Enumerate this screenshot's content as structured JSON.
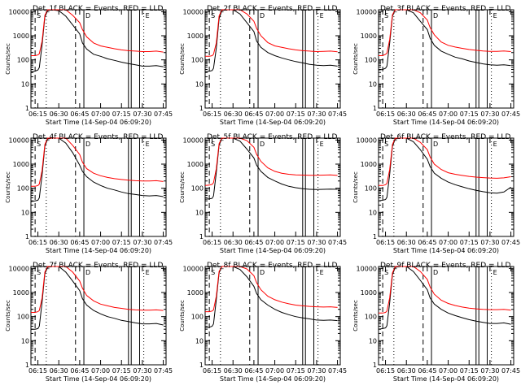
{
  "figure": {
    "start_time_label": "Start Time (14-Sep-04 06:09:20)",
    "ylabel": "Counts/sec",
    "series_colors": {
      "events": "#000000",
      "lld": "#ff0000"
    },
    "panel_marker_labels": [
      "S",
      "D",
      "E"
    ]
  },
  "chart_data": [
    {
      "type": "line",
      "title": "Det_1f BLACK = Events, RED = LLD",
      "xlabel": "Start Time (14-Sep-04 06:09:20)",
      "ylabel": "Counts/sec",
      "xlim": [
        "06:10",
        "07:47"
      ],
      "ylim": [
        1,
        12000
      ],
      "yscale": "log",
      "xticks": [
        "06:15",
        "06:30",
        "06:45",
        "07:00",
        "07:15",
        "07:30",
        "07:45"
      ],
      "yticks": [
        1,
        10,
        100,
        1000,
        10000
      ],
      "x": [
        "06:10",
        "06:13",
        "06:15",
        "06:16",
        "06:18",
        "06:20",
        "06:22",
        "06:25",
        "06:30",
        "06:35",
        "06:40",
        "06:45",
        "06:47",
        "06:50",
        "06:55",
        "07:00",
        "07:05",
        "07:10",
        "07:15",
        "07:20",
        "07:25",
        "07:30",
        "07:35",
        "07:40",
        "07:45"
      ],
      "series": [
        {
          "name": "Events",
          "color": "#000000",
          "values": [
            32,
            34,
            38,
            48,
            420,
            6000,
            11000,
            12000,
            11000,
            6500,
            2800,
            1200,
            500,
            280,
            170,
            140,
            110,
            95,
            80,
            70,
            62,
            55,
            55,
            58,
            52
          ]
        },
        {
          "name": "LLD",
          "color": "#ff0000",
          "values": [
            150,
            150,
            160,
            180,
            600,
            7000,
            12000,
            12000,
            12000,
            12000,
            7000,
            3500,
            1800,
            900,
            500,
            380,
            330,
            290,
            260,
            240,
            230,
            220,
            220,
            230,
            210
          ]
        }
      ]
    },
    {
      "type": "line",
      "title": "Det_2f BLACK = Events, RED = LLD",
      "xlabel": "Start Time (14-Sep-04 06:09:20)",
      "ylabel": "Counts/sec",
      "xlim": [
        "06:10",
        "07:47"
      ],
      "ylim": [
        1,
        12000
      ],
      "yscale": "log",
      "xticks": [
        "06:15",
        "06:30",
        "06:45",
        "07:00",
        "07:15",
        "07:30",
        "07:45"
      ],
      "yticks": [
        1,
        10,
        100,
        1000,
        10000
      ],
      "x": [
        "06:10",
        "06:13",
        "06:15",
        "06:16",
        "06:18",
        "06:20",
        "06:22",
        "06:25",
        "06:30",
        "06:35",
        "06:40",
        "06:45",
        "06:47",
        "06:50",
        "06:55",
        "07:00",
        "07:05",
        "07:10",
        "07:15",
        "07:20",
        "07:25",
        "07:30",
        "07:35",
        "07:40",
        "07:45"
      ],
      "series": [
        {
          "name": "Events",
          "color": "#000000",
          "values": [
            32,
            34,
            36,
            45,
            300,
            5000,
            11000,
            12000,
            12000,
            8000,
            3500,
            1500,
            600,
            330,
            200,
            150,
            120,
            100,
            85,
            75,
            65,
            60,
            58,
            60,
            55
          ]
        },
        {
          "name": "LLD",
          "color": "#ff0000",
          "values": [
            140,
            140,
            150,
            170,
            500,
            6500,
            12000,
            12000,
            12000,
            12000,
            8000,
            4000,
            2000,
            1000,
            520,
            380,
            330,
            290,
            260,
            240,
            230,
            220,
            225,
            230,
            215
          ]
        }
      ]
    },
    {
      "type": "line",
      "title": "Det_3f BLACK = Events, RED = LLD",
      "xlabel": "Start Time (14-Sep-04 06:09:20)",
      "ylabel": "Counts/sec",
      "xlim": [
        "06:10",
        "07:47"
      ],
      "ylim": [
        1,
        12000
      ],
      "yscale": "log",
      "xticks": [
        "06:15",
        "06:30",
        "06:45",
        "07:00",
        "07:15",
        "07:30",
        "07:45"
      ],
      "yticks": [
        1,
        10,
        100,
        1000,
        10000
      ],
      "x": [
        "06:10",
        "06:13",
        "06:15",
        "06:16",
        "06:18",
        "06:20",
        "06:22",
        "06:25",
        "06:30",
        "06:35",
        "06:40",
        "06:45",
        "06:47",
        "06:50",
        "06:55",
        "07:00",
        "07:05",
        "07:10",
        "07:15",
        "07:20",
        "07:25",
        "07:30",
        "07:35",
        "07:40",
        "07:45"
      ],
      "series": [
        {
          "name": "Events",
          "color": "#000000",
          "values": [
            38,
            40,
            45,
            55,
            500,
            6500,
            12000,
            12000,
            12000,
            9000,
            4000,
            1800,
            800,
            400,
            230,
            170,
            130,
            110,
            90,
            78,
            68,
            62,
            60,
            62,
            58
          ]
        },
        {
          "name": "LLD",
          "color": "#ff0000",
          "values": [
            150,
            150,
            170,
            190,
            700,
            7500,
            12000,
            12000,
            12000,
            12000,
            9000,
            4500,
            2200,
            1100,
            550,
            400,
            340,
            300,
            270,
            250,
            235,
            225,
            225,
            235,
            220
          ]
        }
      ]
    },
    {
      "type": "line",
      "title": "Det_4f BLACK = Events, RED = LLD",
      "xlabel": "Start Time (14-Sep-04 06:09:20)",
      "ylabel": "Counts/sec",
      "xlim": [
        "06:10",
        "07:47"
      ],
      "ylim": [
        1,
        12000
      ],
      "yscale": "log",
      "xticks": [
        "06:15",
        "06:30",
        "06:45",
        "07:00",
        "07:15",
        "07:30",
        "07:45"
      ],
      "yticks": [
        1,
        10,
        100,
        1000,
        10000
      ],
      "x": [
        "06:10",
        "06:13",
        "06:15",
        "06:16",
        "06:18",
        "06:20",
        "06:22",
        "06:25",
        "06:30",
        "06:35",
        "06:40",
        "06:45",
        "06:47",
        "06:50",
        "06:55",
        "07:00",
        "07:05",
        "07:10",
        "07:15",
        "07:20",
        "07:25",
        "07:30",
        "07:35",
        "07:40",
        "07:45"
      ],
      "series": [
        {
          "name": "Events",
          "color": "#000000",
          "values": [
            28,
            30,
            32,
            40,
            350,
            5500,
            11000,
            12000,
            12000,
            7500,
            3000,
            900,
            500,
            300,
            180,
            130,
            100,
            85,
            70,
            60,
            55,
            50,
            48,
            50,
            45
          ]
        },
        {
          "name": "LLD",
          "color": "#ff0000",
          "values": [
            120,
            120,
            130,
            150,
            550,
            6500,
            12000,
            12000,
            12000,
            12000,
            6000,
            2500,
            1200,
            650,
            420,
            330,
            280,
            250,
            230,
            215,
            205,
            200,
            200,
            205,
            190
          ]
        }
      ]
    },
    {
      "type": "line",
      "title": "Det_5f BLACK = Events, RED = LLD",
      "xlabel": "Start Time (14-Sep-04 06:09:20)",
      "ylabel": "Counts/sec",
      "xlim": [
        "06:10",
        "07:47"
      ],
      "ylim": [
        1,
        12000
      ],
      "yscale": "log",
      "xticks": [
        "06:15",
        "06:30",
        "06:45",
        "07:00",
        "07:15",
        "07:30",
        "07:45"
      ],
      "yticks": [
        1,
        10,
        100,
        1000,
        10000
      ],
      "x": [
        "06:10",
        "06:13",
        "06:15",
        "06:16",
        "06:18",
        "06:20",
        "06:22",
        "06:25",
        "06:30",
        "06:35",
        "06:40",
        "06:45",
        "06:47",
        "06:50",
        "06:55",
        "07:00",
        "07:05",
        "07:10",
        "07:15",
        "07:20",
        "07:25",
        "07:30",
        "07:35",
        "07:40",
        "07:45"
      ],
      "series": [
        {
          "name": "Events",
          "color": "#000000",
          "values": [
            35,
            36,
            38,
            48,
            450,
            6000,
            11500,
            12000,
            12000,
            9000,
            4200,
            1800,
            900,
            500,
            280,
            200,
            150,
            120,
            105,
            95,
            90,
            88,
            90,
            92,
            90
          ]
        },
        {
          "name": "LLD",
          "color": "#ff0000",
          "values": [
            130,
            135,
            145,
            170,
            650,
            7000,
            12000,
            12000,
            12000,
            12000,
            9500,
            5000,
            2500,
            1300,
            700,
            500,
            420,
            380,
            360,
            350,
            345,
            345,
            350,
            360,
            340
          ]
        }
      ]
    },
    {
      "type": "line",
      "title": "Det_6f BLACK = Events, RED = LLD",
      "xlabel": "Start Time (14-Sep-04 06:09:20)",
      "ylabel": "Counts/sec",
      "xlim": [
        "06:10",
        "07:47"
      ],
      "ylim": [
        1,
        12000
      ],
      "yscale": "log",
      "xticks": [
        "06:15",
        "06:30",
        "06:45",
        "07:00",
        "07:15",
        "07:30",
        "07:45"
      ],
      "yticks": [
        1,
        10,
        100,
        1000,
        10000
      ],
      "x": [
        "06:10",
        "06:13",
        "06:15",
        "06:16",
        "06:18",
        "06:20",
        "06:22",
        "06:25",
        "06:30",
        "06:35",
        "06:40",
        "06:45",
        "06:47",
        "06:50",
        "06:55",
        "07:00",
        "07:05",
        "07:10",
        "07:15",
        "07:20",
        "07:25",
        "07:30",
        "07:35",
        "07:40",
        "07:45"
      ],
      "series": [
        {
          "name": "Events",
          "color": "#000000",
          "values": [
            30,
            32,
            34,
            42,
            380,
            5500,
            11000,
            12000,
            12000,
            8500,
            4000,
            1600,
            800,
            420,
            260,
            180,
            140,
            115,
            95,
            82,
            72,
            65,
            62,
            70,
            110
          ]
        },
        {
          "name": "LLD",
          "color": "#ff0000",
          "values": [
            130,
            130,
            140,
            160,
            600,
            6500,
            12000,
            12000,
            12000,
            12000,
            8000,
            4000,
            2000,
            1000,
            600,
            440,
            380,
            340,
            310,
            290,
            275,
            265,
            260,
            270,
            300
          ]
        }
      ]
    },
    {
      "type": "line",
      "title": "Det_7f BLACK = Events, RED = LLD",
      "xlabel": "Start Time (14-Sep-04 06:09:20)",
      "ylabel": "Counts/sec",
      "xlim": [
        "06:10",
        "07:47"
      ],
      "ylim": [
        1,
        12000
      ],
      "yscale": "log",
      "xticks": [
        "06:15",
        "06:30",
        "06:45",
        "07:00",
        "07:15",
        "07:30",
        "07:45"
      ],
      "yticks": [
        1,
        10,
        100,
        1000,
        10000
      ],
      "x": [
        "06:10",
        "06:13",
        "06:15",
        "06:16",
        "06:18",
        "06:20",
        "06:22",
        "06:25",
        "06:30",
        "06:35",
        "06:40",
        "06:45",
        "06:47",
        "06:50",
        "06:55",
        "07:00",
        "07:05",
        "07:10",
        "07:15",
        "07:20",
        "07:25",
        "07:30",
        "07:35",
        "07:40",
        "07:45"
      ],
      "series": [
        {
          "name": "Events",
          "color": "#000000",
          "values": [
            30,
            30,
            32,
            40,
            400,
            6000,
            11000,
            12000,
            12000,
            7000,
            3000,
            1200,
            550,
            300,
            180,
            130,
            100,
            85,
            70,
            62,
            55,
            50,
            50,
            52,
            45
          ]
        },
        {
          "name": "LLD",
          "color": "#ff0000",
          "values": [
            150,
            150,
            160,
            180,
            600,
            7000,
            12000,
            12000,
            12000,
            12000,
            7000,
            3000,
            1500,
            750,
            450,
            330,
            280,
            240,
            220,
            200,
            190,
            185,
            185,
            190,
            180
          ]
        }
      ]
    },
    {
      "type": "line",
      "title": "Det_8f BLACK = Events, RED = LLD",
      "xlabel": "Start Time (14-Sep-04 06:09:20)",
      "ylabel": "Counts/sec",
      "xlim": [
        "06:10",
        "07:47"
      ],
      "ylim": [
        1,
        12000
      ],
      "yscale": "log",
      "xticks": [
        "06:15",
        "06:30",
        "06:45",
        "07:00",
        "07:15",
        "07:30",
        "07:45"
      ],
      "yticks": [
        1,
        10,
        100,
        1000,
        10000
      ],
      "x": [
        "06:10",
        "06:13",
        "06:15",
        "06:16",
        "06:18",
        "06:20",
        "06:22",
        "06:25",
        "06:30",
        "06:35",
        "06:40",
        "06:45",
        "06:47",
        "06:50",
        "06:55",
        "07:00",
        "07:05",
        "07:10",
        "07:15",
        "07:20",
        "07:25",
        "07:30",
        "07:35",
        "07:40",
        "07:45"
      ],
      "series": [
        {
          "name": "Events",
          "color": "#000000",
          "values": [
            34,
            36,
            40,
            50,
            500,
            6500,
            12000,
            12000,
            12000,
            9000,
            4500,
            1800,
            900,
            500,
            300,
            200,
            150,
            120,
            100,
            88,
            80,
            72,
            70,
            72,
            68
          ]
        },
        {
          "name": "LLD",
          "color": "#ff0000",
          "values": [
            160,
            160,
            170,
            190,
            700,
            7500,
            12000,
            12000,
            12000,
            12000,
            9500,
            5000,
            2500,
            1300,
            700,
            500,
            400,
            340,
            300,
            280,
            265,
            255,
            250,
            255,
            240
          ]
        }
      ]
    },
    {
      "type": "line",
      "title": "Det_9f BLACK = Events, RED = LLD",
      "xlabel": "Start Time (14-Sep-04 06:09:20)",
      "ylabel": "Counts/sec",
      "xlim": [
        "06:10",
        "07:47"
      ],
      "ylim": [
        1,
        12000
      ],
      "yscale": "log",
      "xticks": [
        "06:15",
        "06:30",
        "06:45",
        "07:00",
        "07:15",
        "07:30",
        "07:45"
      ],
      "yticks": [
        1,
        10,
        100,
        1000,
        10000
      ],
      "x": [
        "06:10",
        "06:13",
        "06:15",
        "06:16",
        "06:18",
        "06:20",
        "06:22",
        "06:25",
        "06:30",
        "06:35",
        "06:40",
        "06:45",
        "06:47",
        "06:50",
        "06:55",
        "07:00",
        "07:05",
        "07:10",
        "07:15",
        "07:20",
        "07:25",
        "07:30",
        "07:35",
        "07:40",
        "07:45"
      ],
      "series": [
        {
          "name": "Events",
          "color": "#000000",
          "values": [
            30,
            32,
            34,
            42,
            380,
            5500,
            11000,
            12000,
            12000,
            7500,
            3200,
            1300,
            600,
            330,
            200,
            140,
            110,
            90,
            75,
            65,
            58,
            52,
            52,
            55,
            48
          ]
        },
        {
          "name": "LLD",
          "color": "#ff0000",
          "values": [
            140,
            140,
            150,
            170,
            600,
            6500,
            12000,
            12000,
            12000,
            12000,
            7500,
            3500,
            1700,
            850,
            480,
            350,
            290,
            250,
            225,
            210,
            200,
            195,
            195,
            200,
            185
          ]
        }
      ]
    }
  ]
}
